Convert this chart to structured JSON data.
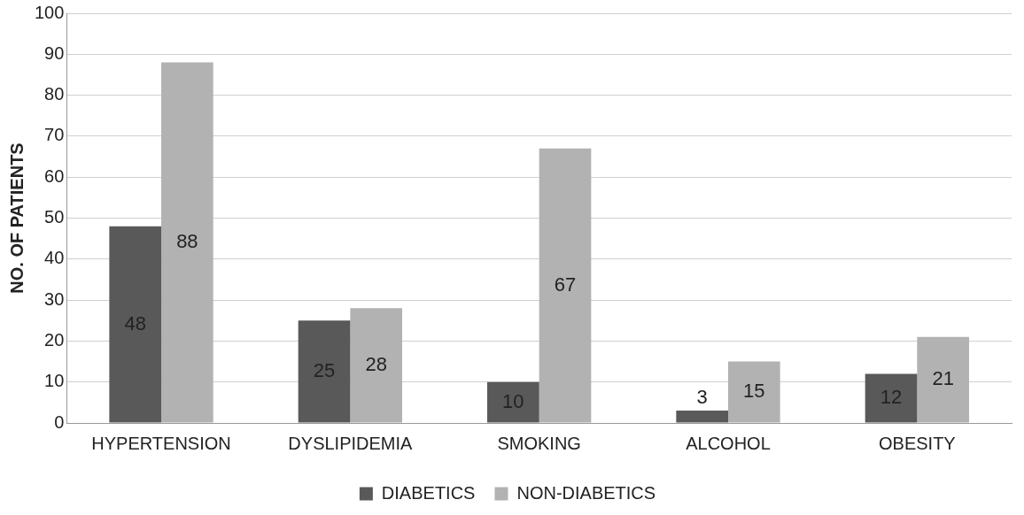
{
  "chart_data": {
    "type": "bar",
    "ylabel": "NO. OF PATIENTS",
    "categories": [
      "HYPERTENSION",
      "DYSLIPIDEMIA",
      "SMOKING",
      "ALCOHOL",
      "OBESITY"
    ],
    "series": [
      {
        "name": "DIABETICS",
        "color": "#595959",
        "values": [
          48,
          25,
          10,
          3,
          12
        ]
      },
      {
        "name": "NON-DIABETICS",
        "color": "#b2b2b2",
        "values": [
          88,
          28,
          67,
          15,
          21
        ]
      }
    ],
    "ylim": [
      0,
      100
    ],
    "yticks": [
      0,
      10,
      20,
      30,
      40,
      50,
      60,
      70,
      80,
      90,
      100
    ],
    "grid": "y",
    "legend": "bottom",
    "data_labels": true
  }
}
